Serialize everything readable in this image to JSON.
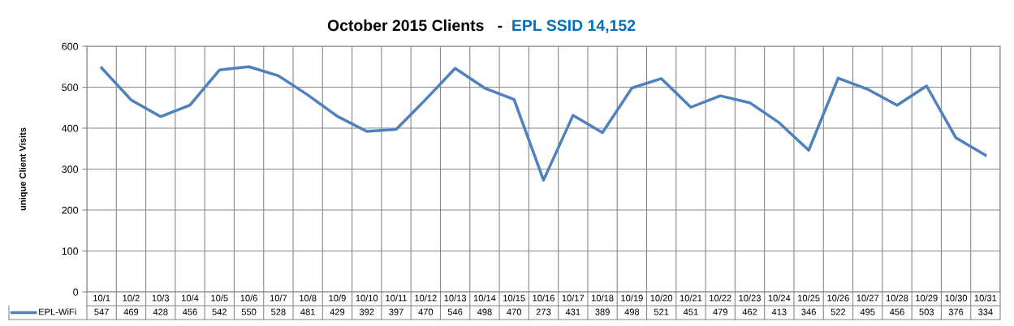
{
  "chart_data": {
    "type": "line",
    "title": "October 2015 Clients   -",
    "subtitle": "EPL SSID 14,152",
    "ylabel": "unique Client Visits",
    "categories": [
      "10/1",
      "10/2",
      "10/3",
      "10/4",
      "10/5",
      "10/6",
      "10/7",
      "10/8",
      "10/9",
      "10/10",
      "10/11",
      "10/12",
      "10/13",
      "10/14",
      "10/15",
      "10/16",
      "10/17",
      "10/18",
      "10/19",
      "10/20",
      "10/21",
      "10/22",
      "10/23",
      "10/24",
      "10/25",
      "10/26",
      "10/27",
      "10/28",
      "10/29",
      "10/30",
      "10/31"
    ],
    "series": [
      {
        "name": "EPL-WiFi",
        "color": "#4f81bd",
        "values": [
          547,
          469,
          428,
          456,
          542,
          550,
          528,
          481,
          429,
          392,
          397,
          470,
          546,
          498,
          470,
          273,
          431,
          389,
          498,
          521,
          451,
          479,
          462,
          413,
          346,
          522,
          495,
          456,
          503,
          376,
          334
        ]
      }
    ],
    "ylim": [
      0,
      600
    ],
    "yticks": [
      0,
      100,
      200,
      300,
      400,
      500,
      600
    ],
    "grid": true,
    "legend": "bottom left",
    "data_labels": true,
    "marker": "none",
    "line_style": "solid"
  }
}
